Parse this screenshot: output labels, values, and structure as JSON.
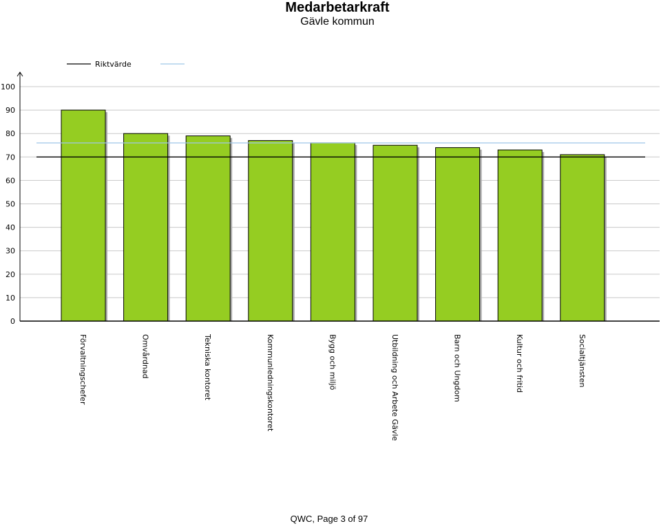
{
  "header": {
    "title": "Medarbetarkraft",
    "subtitle": "Gävle kommun"
  },
  "footer": {
    "page_text": "QWC, Page 3 of 97"
  },
  "colors": {
    "bar": "#95cd22",
    "bar_shadow": "#aaaaaa",
    "reference": "#000000",
    "average": "#9ec6e8",
    "grid": "#c8c8c8"
  },
  "chart_data": {
    "type": "bar",
    "categories": [
      "Förvaltningschefer",
      "Omvårdnad",
      "Tekniska kontoret",
      "Kommunledningskontoret",
      "Bygg och miljö",
      "Utbildning och Arbete Gävle",
      "Barn och Ungdom",
      "Kultur och fritid",
      "Socialtjänsten"
    ],
    "values": [
      90,
      80,
      79,
      77,
      76,
      75,
      74,
      73,
      71
    ],
    "ylim": [
      0,
      100
    ],
    "yticks": [
      0,
      10,
      20,
      30,
      40,
      50,
      60,
      70,
      80,
      90,
      100
    ],
    "grid": true,
    "reference_lines": [
      {
        "name": "Riktvärde",
        "value": 70
      },
      {
        "name": "",
        "value": 76
      }
    ],
    "legend_position": "top-left"
  }
}
